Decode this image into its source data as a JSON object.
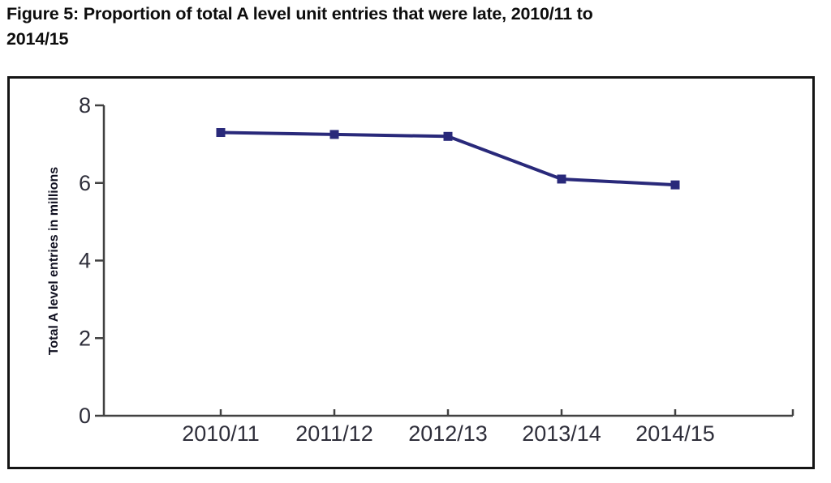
{
  "figure": {
    "title_lines": [
      "Figure 5: Proportion of total A level unit entries that were late, 2010/11 to",
      "2014/15"
    ]
  },
  "chart_data": {
    "type": "line",
    "title": "Figure 5: Proportion of total A level unit entries that were late, 2010/11 to 2014/15",
    "categories": [
      "2010/11",
      "2011/12",
      "2012/13",
      "2013/14",
      "2014/15"
    ],
    "values": [
      7.3,
      7.25,
      7.2,
      6.1,
      5.95
    ],
    "xlabel": "",
    "ylabel": "Total A level entries in millions",
    "ylim": [
      0,
      8
    ],
    "yticks": [
      0,
      2,
      4,
      6,
      8
    ],
    "grid": false,
    "legend": false,
    "marker": "square"
  },
  "colors": {
    "line": "#29297a",
    "marker": "#29297a",
    "axis": "#414141",
    "tick_label": "#2e2e3a",
    "axis_title": "#101020",
    "title_text": "#0d0d0d",
    "frame_border": "#141414",
    "background": "#ffffff"
  }
}
